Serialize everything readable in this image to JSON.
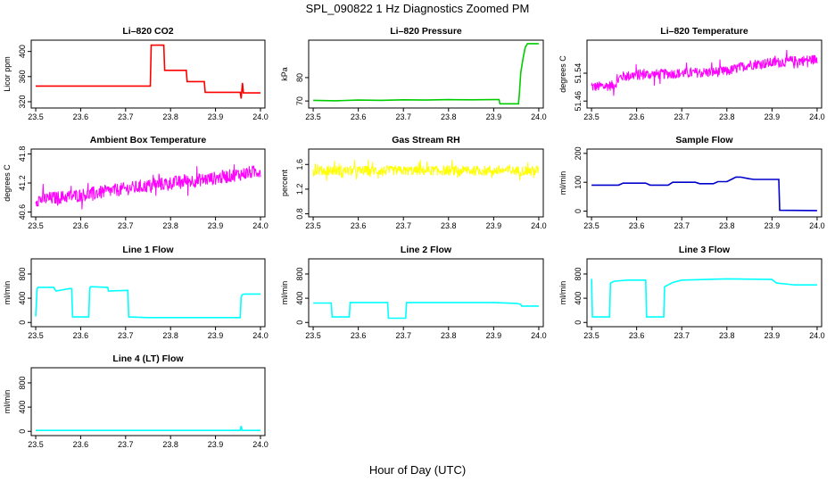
{
  "figure": {
    "title": "SPL_090822  1 Hz Diagnostics Zoomed PM",
    "xlabel": "Hour of Day (UTC)"
  },
  "chart_data": [
    {
      "type": "line",
      "title": "Li–820 CO2",
      "ylabel": "Licor ppm",
      "color": "#ff0000",
      "xlim": [
        23.49,
        24.01
      ],
      "ylim": [
        310,
        418
      ],
      "xticks": [
        "23.5",
        "23.6",
        "23.7",
        "23.8",
        "23.9",
        "24.0"
      ],
      "yticks": [
        "320",
        "360",
        "400"
      ],
      "x": [
        23.5,
        23.6,
        23.7,
        23.755,
        23.757,
        23.78,
        23.785,
        23.787,
        23.83,
        23.835,
        23.837,
        23.87,
        23.875,
        23.877,
        23.955,
        23.957,
        23.96,
        23.962,
        23.965,
        24.0
      ],
      "y": [
        345,
        345,
        345,
        345,
        410,
        410,
        410,
        370,
        370,
        370,
        352,
        352,
        352,
        335,
        335,
        325,
        350,
        334,
        334,
        334
      ]
    },
    {
      "type": "line",
      "title": "Li–820 Pressure",
      "ylabel": "kPa",
      "color": "#00cc00",
      "xlim": [
        23.49,
        24.01
      ],
      "ylim": [
        67,
        96
      ],
      "xticks": [
        "23.5",
        "23.6",
        "23.7",
        "23.8",
        "23.9",
        "24.0"
      ],
      "yticks": [
        "70",
        "80"
      ],
      "x": [
        23.5,
        23.55,
        23.6,
        23.65,
        23.7,
        23.75,
        23.8,
        23.85,
        23.9,
        23.912,
        23.914,
        23.955,
        23.957,
        23.96,
        23.965,
        23.97,
        23.975,
        24.0
      ],
      "y": [
        70.3,
        70.1,
        70.4,
        70.3,
        70.5,
        70.4,
        70.6,
        70.5,
        70.6,
        70.6,
        68.8,
        68.8,
        73,
        82,
        88,
        93,
        94.5,
        94.5
      ]
    },
    {
      "type": "line",
      "title": "Li–820 Temperature",
      "ylabel": "degrees C",
      "color": "#ff00ff",
      "xlim": [
        23.49,
        24.01
      ],
      "ylim": [
        51.44,
        51.635
      ],
      "xticks": [
        "23.5",
        "23.6",
        "23.7",
        "23.8",
        "23.9",
        "24.0"
      ],
      "yticks": [
        "51.46",
        "51.54"
      ],
      "x": [
        23.5,
        23.55,
        23.565,
        23.6,
        23.7,
        23.8,
        23.85,
        23.9,
        23.95,
        24.0
      ],
      "y": [
        51.5,
        51.505,
        51.53,
        51.535,
        51.54,
        51.545,
        51.565,
        51.57,
        51.575,
        51.58
      ],
      "noise": 0.03
    },
    {
      "type": "line",
      "title": "Ambient Box Temperature",
      "ylabel": "degrees C",
      "color": "#ff00ff",
      "xlim": [
        23.49,
        24.01
      ],
      "ylim": [
        40.5,
        41.9
      ],
      "xticks": [
        "23.5",
        "23.6",
        "23.7",
        "23.8",
        "23.9",
        "24.0"
      ],
      "yticks": [
        "40.6",
        "41.2",
        "41.8"
      ],
      "x": [
        23.5,
        23.6,
        23.7,
        23.8,
        23.9,
        24.0
      ],
      "y": [
        40.85,
        40.95,
        41.08,
        41.2,
        41.3,
        41.45
      ],
      "noise": 0.28
    },
    {
      "type": "line",
      "title": "Gas Stream RH",
      "ylabel": "percent",
      "color": "#ffff00",
      "xlim": [
        23.49,
        24.01
      ],
      "ylim": [
        0.75,
        1.85
      ],
      "xticks": [
        "23.5",
        "23.6",
        "23.7",
        "23.8",
        "23.9",
        "24.0"
      ],
      "yticks": [
        "0.8",
        "1.2",
        "1.6"
      ],
      "x": [
        23.5,
        24.0
      ],
      "y": [
        1.5,
        1.5
      ],
      "noise": 0.16
    },
    {
      "type": "line",
      "title": "Sample Flow",
      "ylabel": "ml/min",
      "color": "#0000cc",
      "xlim": [
        23.49,
        24.01
      ],
      "ylim": [
        -20,
        215
      ],
      "xticks": [
        "23.5",
        "23.6",
        "23.7",
        "23.8",
        "23.9",
        "24.0"
      ],
      "yticks": [
        "0",
        "100",
        "200"
      ],
      "x": [
        23.5,
        23.56,
        23.57,
        23.62,
        23.63,
        23.67,
        23.68,
        23.73,
        23.74,
        23.77,
        23.78,
        23.8,
        23.81,
        23.82,
        23.83,
        23.85,
        23.86,
        23.915,
        23.917,
        24.0
      ],
      "y": [
        90,
        90,
        97,
        97,
        90,
        90,
        100,
        100,
        95,
        95,
        102,
        102,
        110,
        118,
        118,
        112,
        110,
        110,
        3,
        2
      ]
    },
    {
      "type": "line",
      "title": "Line 1 Flow",
      "ylabel": "ml/min",
      "color": "#00ffff",
      "xlim": [
        23.49,
        24.01
      ],
      "ylim": [
        -70,
        1050
      ],
      "xticks": [
        "23.5",
        "23.6",
        "23.7",
        "23.8",
        "23.9",
        "24.0"
      ],
      "yticks": [
        "0",
        "400",
        "800"
      ],
      "x": [
        23.5,
        23.503,
        23.505,
        23.54,
        23.545,
        23.575,
        23.58,
        23.582,
        23.618,
        23.62,
        23.622,
        23.66,
        23.662,
        23.705,
        23.707,
        23.75,
        23.955,
        23.957,
        23.96,
        23.965,
        24.0
      ],
      "y": [
        100,
        560,
        580,
        580,
        520,
        560,
        560,
        90,
        90,
        560,
        590,
        580,
        520,
        530,
        90,
        80,
        80,
        420,
        460,
        470,
        470
      ]
    },
    {
      "type": "line",
      "title": "Line 2 Flow",
      "ylabel": "ml/min",
      "color": "#00ffff",
      "xlim": [
        23.49,
        24.01
      ],
      "ylim": [
        -70,
        1050
      ],
      "xticks": [
        "23.5",
        "23.6",
        "23.7",
        "23.8",
        "23.9",
        "24.0"
      ],
      "yticks": [
        "0",
        "400",
        "800"
      ],
      "x": [
        23.5,
        23.54,
        23.542,
        23.58,
        23.582,
        23.665,
        23.667,
        23.705,
        23.707,
        23.8,
        23.9,
        23.95,
        23.96,
        23.962,
        24.0
      ],
      "y": [
        320,
        320,
        90,
        90,
        330,
        330,
        70,
        70,
        330,
        330,
        330,
        315,
        300,
        270,
        270
      ]
    },
    {
      "type": "line",
      "title": "Line 3 Flow",
      "ylabel": "ml/min",
      "color": "#00ffff",
      "xlim": [
        23.49,
        24.01
      ],
      "ylim": [
        -70,
        1050
      ],
      "xticks": [
        "23.5",
        "23.6",
        "23.7",
        "23.8",
        "23.9",
        "24.0"
      ],
      "yticks": [
        "0",
        "400",
        "800"
      ],
      "x": [
        23.5,
        23.502,
        23.504,
        23.54,
        23.542,
        23.55,
        23.58,
        23.6,
        23.62,
        23.622,
        23.66,
        23.662,
        23.67,
        23.68,
        23.7,
        23.8,
        23.9,
        23.91,
        23.95,
        24.0
      ],
      "y": [
        720,
        90,
        90,
        90,
        650,
        680,
        700,
        700,
        700,
        90,
        90,
        590,
        620,
        660,
        700,
        720,
        710,
        650,
        620,
        620
      ]
    },
    {
      "type": "line",
      "title": "Line 4 (LT) Flow",
      "ylabel": "ml/min",
      "color": "#00ffff",
      "xlim": [
        23.49,
        24.01
      ],
      "ylim": [
        -70,
        1050
      ],
      "xticks": [
        "23.5",
        "23.6",
        "23.7",
        "23.8",
        "23.9",
        "24.0"
      ],
      "yticks": [
        "0",
        "400",
        "800"
      ],
      "x": [
        23.5,
        23.955,
        23.957,
        23.959,
        24.0
      ],
      "y": [
        15,
        15,
        90,
        15,
        15
      ]
    }
  ]
}
